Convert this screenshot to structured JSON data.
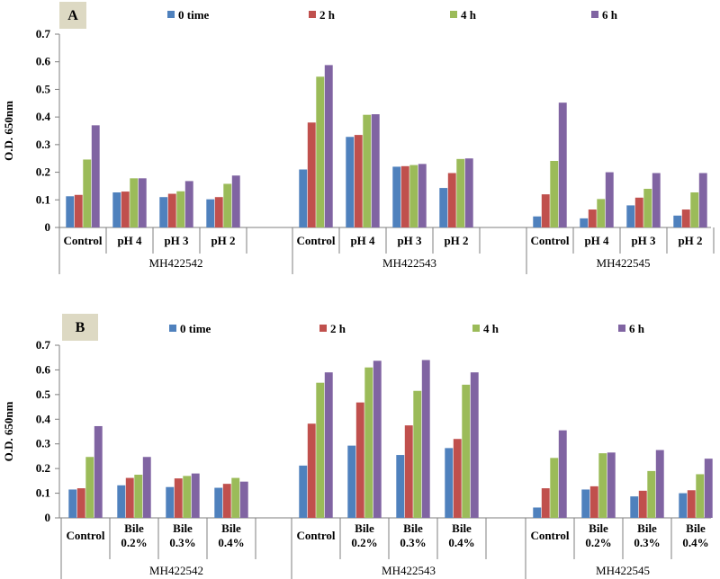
{
  "chart_data": [
    {
      "panel_label": "A",
      "type": "bar",
      "ylabel": "O.D. 650nm",
      "ylim": [
        0,
        0.7
      ],
      "yticks": [
        "0",
        "0.1",
        "0.2",
        "0.3",
        "0.4",
        "0.5",
        "0.6",
        "0.7"
      ],
      "series_names": [
        "0 time",
        "2 h",
        "4 h",
        "6 h"
      ],
      "colors": [
        "#4f81bd",
        "#c0504d",
        "#9bbb59",
        "#8064a2"
      ],
      "groups": [
        {
          "name": "MH422542",
          "categories": [
            {
              "label": [
                "Control"
              ],
              "values": [
                0.113,
                0.118,
                0.246,
                0.37
              ]
            },
            {
              "label": [
                "pH 4"
              ],
              "values": [
                0.127,
                0.13,
                0.178,
                0.178
              ]
            },
            {
              "label": [
                "pH 3"
              ],
              "values": [
                0.11,
                0.122,
                0.131,
                0.168
              ]
            },
            {
              "label": [
                "pH 2"
              ],
              "values": [
                0.102,
                0.11,
                0.158,
                0.188
              ]
            }
          ]
        },
        {
          "name": "MH422543",
          "categories": [
            {
              "label": [
                "Control"
              ],
              "values": [
                0.21,
                0.38,
                0.546,
                0.588
              ]
            },
            {
              "label": [
                "pH 4"
              ],
              "values": [
                0.328,
                0.335,
                0.408,
                0.41
              ]
            },
            {
              "label": [
                "pH 3"
              ],
              "values": [
                0.22,
                0.222,
                0.226,
                0.23
              ]
            },
            {
              "label": [
                "pH 2"
              ],
              "values": [
                0.143,
                0.197,
                0.248,
                0.25
              ]
            }
          ]
        },
        {
          "name": "MH422545",
          "categories": [
            {
              "label": [
                "Control"
              ],
              "values": [
                0.04,
                0.12,
                0.241,
                0.452
              ]
            },
            {
              "label": [
                "pH 4"
              ],
              "values": [
                0.033,
                0.065,
                0.103,
                0.2
              ]
            },
            {
              "label": [
                "pH 3"
              ],
              "values": [
                0.08,
                0.108,
                0.14,
                0.197
              ]
            },
            {
              "label": [
                "pH 2"
              ],
              "values": [
                0.043,
                0.065,
                0.127,
                0.197
              ]
            }
          ]
        }
      ]
    },
    {
      "panel_label": "B",
      "type": "bar",
      "ylabel": "O.D. 650nm",
      "ylim": [
        0,
        0.7
      ],
      "yticks": [
        "0",
        "0.1",
        "0.2",
        "0.3",
        "0.4",
        "0.5",
        "0.6",
        "0.7"
      ],
      "series_names": [
        "0 time",
        "2 h",
        "4 h",
        "6 h"
      ],
      "colors": [
        "#4f81bd",
        "#c0504d",
        "#9bbb59",
        "#8064a2"
      ],
      "groups": [
        {
          "name": "MH422542",
          "categories": [
            {
              "label": [
                "Control"
              ],
              "values": [
                0.115,
                0.12,
                0.247,
                0.372
              ]
            },
            {
              "label": [
                "Bile",
                "0.2%"
              ],
              "values": [
                0.132,
                0.162,
                0.175,
                0.247
              ]
            },
            {
              "label": [
                "Bile",
                "0.3%"
              ],
              "values": [
                0.125,
                0.16,
                0.17,
                0.18
              ]
            },
            {
              "label": [
                "Bile",
                "0.4%"
              ],
              "values": [
                0.122,
                0.138,
                0.162,
                0.147
              ]
            }
          ]
        },
        {
          "name": "MH422543",
          "categories": [
            {
              "label": [
                "Control"
              ],
              "values": [
                0.212,
                0.382,
                0.548,
                0.59
              ]
            },
            {
              "label": [
                "Bile",
                "0.2%"
              ],
              "values": [
                0.293,
                0.468,
                0.61,
                0.637
              ]
            },
            {
              "label": [
                "Bile",
                "0.3%"
              ],
              "values": [
                0.255,
                0.375,
                0.515,
                0.64
              ]
            },
            {
              "label": [
                "Bile",
                "0.4%"
              ],
              "values": [
                0.283,
                0.32,
                0.54,
                0.59
              ]
            }
          ]
        },
        {
          "name": "MH422545",
          "categories": [
            {
              "label": [
                "Control"
              ],
              "values": [
                0.042,
                0.12,
                0.243,
                0.355
              ]
            },
            {
              "label": [
                "Bile",
                "0.2%"
              ],
              "values": [
                0.115,
                0.128,
                0.262,
                0.265
              ]
            },
            {
              "label": [
                "Bile",
                "0.3%"
              ],
              "values": [
                0.087,
                0.11,
                0.19,
                0.275
              ]
            },
            {
              "label": [
                "Bile",
                "0.4%"
              ],
              "values": [
                0.1,
                0.112,
                0.177,
                0.24
              ]
            }
          ]
        }
      ]
    }
  ]
}
